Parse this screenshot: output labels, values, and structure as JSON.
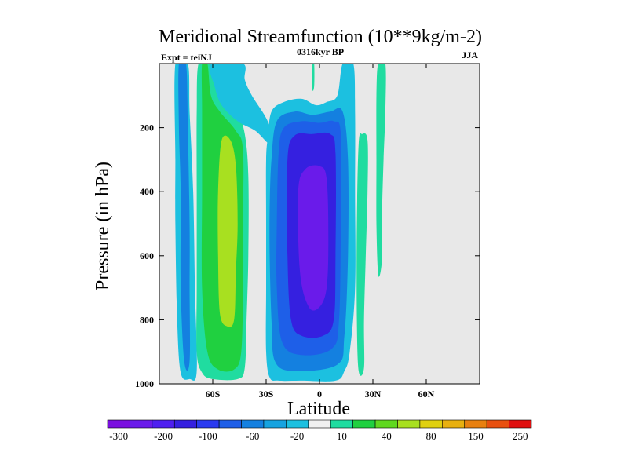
{
  "chart_data": {
    "type": "heatmap",
    "title": "Meridional Streamfunction (10**9kg/m-2)",
    "subtitle_left": "Expt = teiNJ",
    "subtitle_center": "0316kyr BP",
    "subtitle_right": "JJA",
    "xlabel": "Latitude",
    "ylabel": "Pressure (in hPa)",
    "xlim": [
      -90,
      90
    ],
    "ylim": [
      1000,
      0
    ],
    "x_ticks": [
      {
        "value": -60,
        "label": "60S"
      },
      {
        "value": -30,
        "label": "30S"
      },
      {
        "value": 0,
        "label": "0"
      },
      {
        "value": 30,
        "label": "30N"
      },
      {
        "value": 60,
        "label": "60N"
      }
    ],
    "y_ticks": [
      {
        "value": 200,
        "label": "200"
      },
      {
        "value": 400,
        "label": "400"
      },
      {
        "value": 600,
        "label": "600"
      },
      {
        "value": 800,
        "label": "800"
      },
      {
        "value": 1000,
        "label": "1000"
      }
    ],
    "background_color": "#e8e8e8",
    "colorbar": {
      "colors": [
        "#7b10e0",
        "#6a1bea",
        "#4f1ff0",
        "#3520e0",
        "#2a3af0",
        "#1e5fe8",
        "#1480e0",
        "#16a3e0",
        "#1cc0e0",
        "#f0f0f0",
        "#20dca0",
        "#20d040",
        "#60d820",
        "#a8e020",
        "#e0d010",
        "#e8b010",
        "#e88010",
        "#e85010",
        "#e01010"
      ],
      "labels": [
        "-300",
        "-200",
        "-100",
        "-60",
        "-20",
        "10",
        "40",
        "80",
        "150",
        "250"
      ],
      "label_positions": [
        1,
        3,
        5,
        7,
        9,
        11,
        13,
        15,
        17,
        19
      ]
    },
    "contours": [
      {
        "name": "sh-polar-negative-cell",
        "value": -20,
        "color": "#1cc0e0",
        "lat_pressure": [
          [
            -81,
            0
          ],
          [
            -74,
            0
          ],
          [
            -73,
            150
          ],
          [
            -71,
            400
          ],
          [
            -70,
            700
          ],
          [
            -69,
            960
          ],
          [
            -73,
            985
          ],
          [
            -78,
            965
          ],
          [
            -80,
            800
          ],
          [
            -81,
            500
          ],
          [
            -81,
            300
          ]
        ]
      },
      {
        "name": "sh-polar-negative-cell",
        "value": -60,
        "color": "#1480e0",
        "lat_pressure": [
          [
            -79,
            0
          ],
          [
            -75,
            0
          ],
          [
            -74,
            200
          ],
          [
            -73,
            500
          ],
          [
            -73,
            700
          ],
          [
            -73,
            930
          ],
          [
            -76,
            930
          ],
          [
            -78,
            700
          ],
          [
            -78,
            400
          ],
          [
            -79,
            200
          ]
        ]
      },
      {
        "name": "sh-midlat-positive-cell",
        "value": 10,
        "color": "#20dca0",
        "lat_pressure": [
          [
            -68,
            0
          ],
          [
            -62,
            0
          ],
          [
            -58,
            70
          ],
          [
            -52,
            110
          ],
          [
            -46,
            150
          ],
          [
            -42,
            220
          ],
          [
            -40,
            350
          ],
          [
            -40,
            600
          ],
          [
            -41,
            800
          ],
          [
            -42,
            950
          ],
          [
            -46,
            985
          ],
          [
            -60,
            985
          ],
          [
            -66,
            965
          ],
          [
            -69,
            900
          ],
          [
            -69,
            700
          ],
          [
            -69,
            400
          ],
          [
            -69,
            150
          ]
        ]
      },
      {
        "name": "sh-midlat-positive-cell",
        "value": 40,
        "color": "#20d040",
        "lat_pressure": [
          [
            -66,
            0
          ],
          [
            -63,
            0
          ],
          [
            -61,
            100
          ],
          [
            -56,
            150
          ],
          [
            -47,
            210
          ],
          [
            -43,
            270
          ],
          [
            -43,
            500
          ],
          [
            -43,
            700
          ],
          [
            -44,
            900
          ],
          [
            -48,
            955
          ],
          [
            -57,
            955
          ],
          [
            -63,
            900
          ],
          [
            -66,
            700
          ],
          [
            -66,
            400
          ],
          [
            -66,
            150
          ]
        ]
      },
      {
        "name": "sh-midlat-positive-cell",
        "value": 80,
        "color": "#a8e020",
        "lat_pressure": [
          [
            -55,
            240
          ],
          [
            -50,
            240
          ],
          [
            -47,
            320
          ],
          [
            -46,
            500
          ],
          [
            -47,
            650
          ],
          [
            -48,
            800
          ],
          [
            -52,
            820
          ],
          [
            -56,
            780
          ],
          [
            -57,
            600
          ],
          [
            -57,
            400
          ]
        ]
      },
      {
        "name": "upper-negative-tongue",
        "value": -20,
        "color": "#1cc0e0",
        "lat_pressure": [
          [
            -61,
            0
          ],
          [
            -43,
            0
          ],
          [
            -42,
            50
          ],
          [
            -38,
            100
          ],
          [
            -31,
            160
          ],
          [
            -28,
            200
          ],
          [
            -28,
            250
          ],
          [
            -36,
            210
          ],
          [
            -46,
            180
          ],
          [
            -55,
            130
          ],
          [
            -59,
            70
          ]
        ]
      },
      {
        "name": "tropical-negative-cell",
        "value": -20,
        "color": "#1cc0e0",
        "lat_pressure": [
          [
            -29,
            230
          ],
          [
            -27,
            150
          ],
          [
            -20,
            120
          ],
          [
            -10,
            110
          ],
          [
            -2,
            130
          ],
          [
            4,
            120
          ],
          [
            10,
            100
          ],
          [
            13,
            0
          ],
          [
            19,
            0
          ],
          [
            20,
            150
          ],
          [
            20,
            400
          ],
          [
            20,
            700
          ],
          [
            17,
            900
          ],
          [
            14,
            960
          ],
          [
            9,
            990
          ],
          [
            -10,
            990
          ],
          [
            -23,
            990
          ],
          [
            -28,
            980
          ],
          [
            -30,
            900
          ],
          [
            -30,
            700
          ],
          [
            -30,
            500
          ],
          [
            -30,
            300
          ]
        ]
      },
      {
        "name": "tropical-negative-cell",
        "value": -60,
        "color": "#1480e0",
        "lat_pressure": [
          [
            -27,
            300
          ],
          [
            -24,
            180
          ],
          [
            -14,
            150
          ],
          [
            -4,
            160
          ],
          [
            6,
            150
          ],
          [
            13,
            150
          ],
          [
            16,
            300
          ],
          [
            16,
            600
          ],
          [
            14,
            850
          ],
          [
            10,
            940
          ],
          [
            -14,
            960
          ],
          [
            -25,
            930
          ],
          [
            -27,
            800
          ],
          [
            -28,
            600
          ],
          [
            -28,
            450
          ]
        ]
      },
      {
        "name": "tropical-negative-cell",
        "value": -100,
        "color": "#1e5fe8",
        "lat_pressure": [
          [
            -23,
            280
          ],
          [
            -20,
            200
          ],
          [
            -10,
            180
          ],
          [
            0,
            185
          ],
          [
            8,
            180
          ],
          [
            12,
            220
          ],
          [
            12,
            500
          ],
          [
            11,
            800
          ],
          [
            7,
            890
          ],
          [
            -10,
            910
          ],
          [
            -21,
            870
          ],
          [
            -24,
            700
          ],
          [
            -24,
            500
          ]
        ]
      },
      {
        "name": "tropical-negative-cell",
        "value": -200,
        "color": "#3520e0",
        "lat_pressure": [
          [
            -18,
            300
          ],
          [
            -14,
            225
          ],
          [
            -4,
            220
          ],
          [
            6,
            220
          ],
          [
            9,
            280
          ],
          [
            9,
            600
          ],
          [
            8,
            800
          ],
          [
            2,
            850
          ],
          [
            -10,
            850
          ],
          [
            -16,
            800
          ],
          [
            -18,
            600
          ]
        ]
      },
      {
        "name": "tropical-negative-cell",
        "value": -300,
        "color": "#6a1bea",
        "lat_pressure": [
          [
            -12,
            400
          ],
          [
            -8,
            330
          ],
          [
            0,
            320
          ],
          [
            4,
            360
          ],
          [
            5,
            550
          ],
          [
            4,
            700
          ],
          [
            0,
            760
          ],
          [
            -6,
            760
          ],
          [
            -11,
            650
          ]
        ]
      },
      {
        "name": "nh-positive-cell",
        "value": 10,
        "color": "#20dca0",
        "lat_pressure": [
          [
            22,
            250
          ],
          [
            24,
            220
          ],
          [
            27,
            240
          ],
          [
            27,
            400
          ],
          [
            26,
            600
          ],
          [
            25,
            800
          ],
          [
            25,
            950
          ],
          [
            22,
            960
          ],
          [
            21,
            800
          ],
          [
            21,
            500
          ]
        ]
      },
      {
        "name": "nh-positive-cell",
        "value": 10,
        "color": "#20dca0",
        "lat_pressure": [
          [
            33,
            0
          ],
          [
            37,
            0
          ],
          [
            37,
            150
          ],
          [
            36,
            300
          ],
          [
            35,
            500
          ],
          [
            35,
            620
          ],
          [
            33,
            660
          ],
          [
            32,
            500
          ],
          [
            32,
            300
          ],
          [
            32,
            100
          ]
        ]
      },
      {
        "name": "upper-positive-sliver",
        "value": 10,
        "color": "#20dca0",
        "lat_pressure": [
          [
            -4,
            0
          ],
          [
            -3,
            0
          ],
          [
            -3,
            70
          ],
          [
            -4,
            80
          ]
        ]
      }
    ]
  }
}
